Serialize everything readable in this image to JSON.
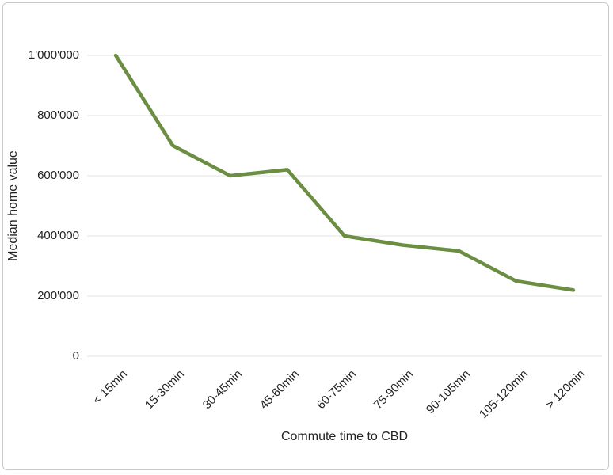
{
  "window": {
    "background": "#ffffff",
    "border_color": "#c9c9c9"
  },
  "chart_data": {
    "type": "line",
    "title": "",
    "xlabel": "Commute time to CBD",
    "ylabel": "Median home value",
    "categories": [
      "< 15min",
      "15-30min",
      "30-45min",
      "45-60min",
      "60-75min",
      "75-90min",
      "90-105min",
      "105-120min",
      "> 120min"
    ],
    "values": [
      1000000,
      700000,
      600000,
      620000,
      400000,
      370000,
      350000,
      250000,
      220000
    ],
    "ylim": [
      0,
      1000000
    ],
    "ytick_step": 200000,
    "ytick_labels": [
      "0",
      "200'000",
      "400'000",
      "600'000",
      "800'000",
      "1'000'000"
    ],
    "grid": true,
    "legend": "none",
    "line_color": "#6b8e42",
    "gridline_color": "#e3e3e3",
    "text_color": "#222222"
  }
}
